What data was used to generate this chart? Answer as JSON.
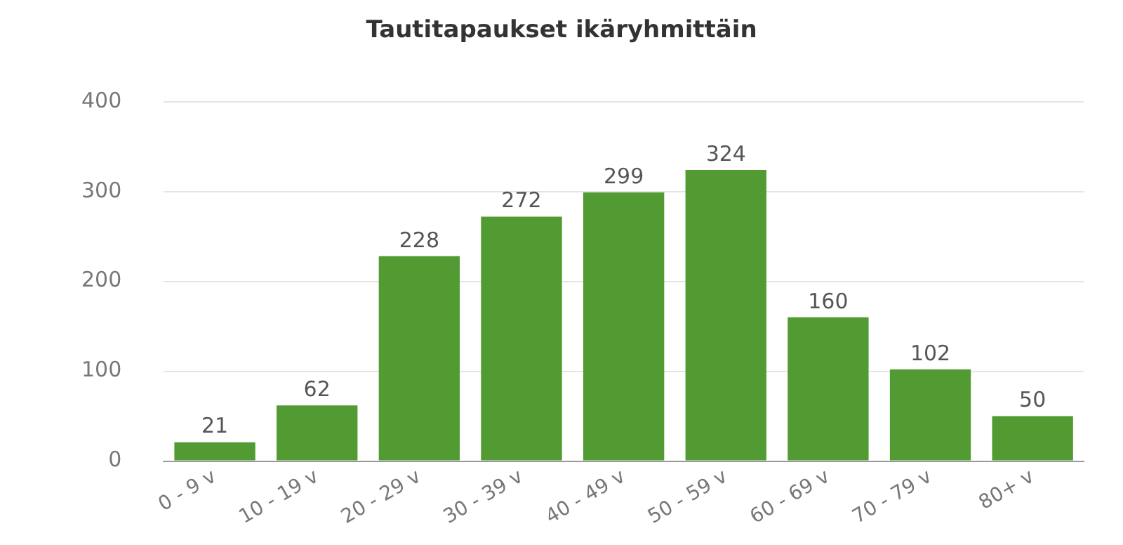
{
  "chart_data": {
    "type": "bar",
    "title": "Tautitapaukset ikäryhmittäin",
    "categories": [
      "0 - 9 v",
      "10 - 19 v",
      "20 - 29 v",
      "30 - 39 v",
      "40 - 49 v",
      "50 - 59 v",
      "60 - 69 v",
      "70 - 79 v",
      "80+ v"
    ],
    "values": [
      21,
      62,
      228,
      272,
      299,
      324,
      160,
      102,
      50
    ],
    "color": "#529b32",
    "ylim": [
      0,
      400
    ],
    "yticks": [
      0,
      100,
      200,
      300,
      400
    ],
    "grid": "y",
    "data_labels": true,
    "legend": false
  }
}
